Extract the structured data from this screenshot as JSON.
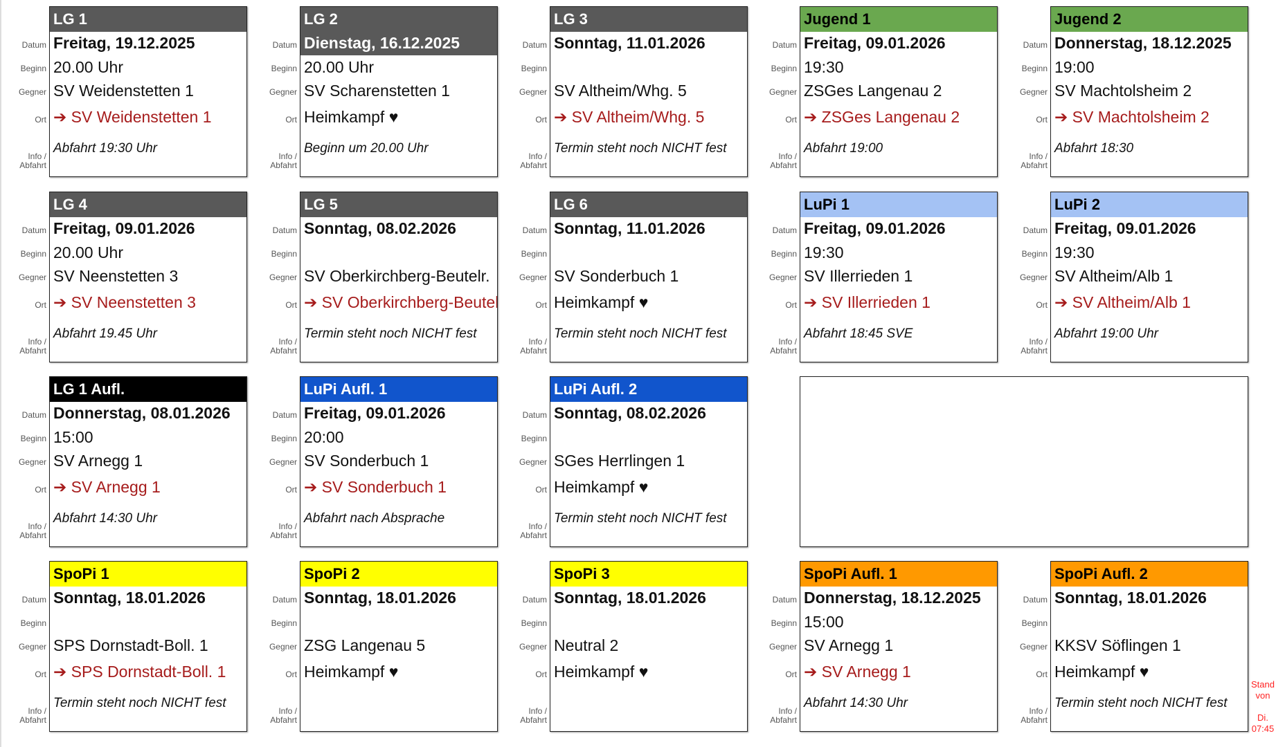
{
  "labels": {
    "datum": "Datum",
    "beginn": "Beginn",
    "gegner": "Gegner",
    "ort": "Ort",
    "info1": "Info /",
    "info2": "Abfahrt"
  },
  "cards": [
    {
      "team": "LG 1",
      "color": "#595959",
      "text": "#ffffff",
      "date": "Freitag, 19.12.2025",
      "time": "20.00 Uhr",
      "opponent": "SV Weidenstetten 1",
      "venue": "➔ SV Weidenstetten 1",
      "away": true,
      "info": "Abfahrt 19:30 Uhr"
    },
    {
      "team": "LG 2",
      "color": "#595959",
      "text": "#ffffff",
      "date": "Dienstag, 16.12.2025",
      "date_highlight": true,
      "time": "20.00 Uhr",
      "opponent": "SV Scharenstetten 1",
      "venue": "Heimkampf ♥",
      "away": false,
      "info": "Beginn um 20.00 Uhr"
    },
    {
      "team": "LG 3",
      "color": "#595959",
      "text": "#ffffff",
      "date": "Sonntag, 11.01.2026",
      "time": "",
      "opponent": "SV Altheim/Whg. 5",
      "venue": "➔ SV Altheim/Whg. 5",
      "away": true,
      "info": "Termin steht noch NICHT fest"
    },
    {
      "team": "Jugend 1",
      "color": "#6aa84f",
      "text": "#000000",
      "date": "Freitag, 09.01.2026",
      "time": "19:30",
      "opponent": "ZSGes Langenau 2",
      "venue": "➔ ZSGes Langenau 2",
      "away": true,
      "info": "Abfahrt 19:00"
    },
    {
      "team": "Jugend 2",
      "color": "#6aa84f",
      "text": "#000000",
      "date": "Donnerstag, 18.12.2025",
      "time": "19:00",
      "opponent": "SV Machtolsheim 2",
      "venue": "➔ SV Machtolsheim 2",
      "away": true,
      "info": "Abfahrt 18:30"
    },
    {
      "team": "LG 4",
      "color": "#595959",
      "text": "#ffffff",
      "date": "Freitag, 09.01.2026",
      "time": "20.00 Uhr",
      "opponent": "SV Neenstetten 3",
      "venue": "➔ SV Neenstetten 3",
      "away": true,
      "info": "Abfahrt 19.45 Uhr"
    },
    {
      "team": "LG 5",
      "color": "#595959",
      "text": "#ffffff",
      "date": "Sonntag, 08.02.2026",
      "time": "",
      "opponent": "SV Oberkirchberg-Beutelr.",
      "venue": "➔ SV Oberkirchberg-Beutelr.",
      "away": true,
      "info": "Termin steht noch NICHT fest"
    },
    {
      "team": "LG 6",
      "color": "#595959",
      "text": "#ffffff",
      "date": "Sonntag, 11.01.2026",
      "time": "",
      "opponent": "SV Sonderbuch 1",
      "venue": "Heimkampf ♥",
      "away": false,
      "info": "Termin steht noch NICHT fest"
    },
    {
      "team": "LuPi 1",
      "color": "#a4c2f4",
      "text": "#000000",
      "date": "Freitag, 09.01.2026",
      "time": "19:30",
      "opponent": "SV Illerrieden 1",
      "venue": "➔ SV Illerrieden 1",
      "away": true,
      "info": "Abfahrt 18:45 SVE"
    },
    {
      "team": "LuPi 2",
      "color": "#a4c2f4",
      "text": "#000000",
      "date": "Freitag, 09.01.2026",
      "time": "19:30",
      "opponent": "SV Altheim/Alb 1",
      "venue": "➔ SV Altheim/Alb 1",
      "away": true,
      "info": "Abfahrt 19:00 Uhr"
    },
    {
      "team": "LG 1 Aufl.",
      "color": "#000000",
      "text": "#ffffff",
      "date": "Donnerstag, 08.01.2026",
      "time": "15:00",
      "opponent": "SV Arnegg 1",
      "venue": "➔ SV Arnegg 1",
      "away": true,
      "info": "Abfahrt 14:30 Uhr"
    },
    {
      "team": "LuPi Aufl. 1",
      "color": "#1155cc",
      "text": "#ffffff",
      "date": "Freitag, 09.01.2026",
      "time": "20:00",
      "opponent": "SV Sonderbuch 1",
      "venue": "➔ SV Sonderbuch 1",
      "away": true,
      "info": "Abfahrt nach Absprache"
    },
    {
      "team": "LuPi Aufl. 2",
      "color": "#1155cc",
      "text": "#ffffff",
      "date": "Sonntag, 08.02.2026",
      "time": "",
      "opponent": "SGes Herrlingen 1",
      "venue": "Heimkampf ♥",
      "away": false,
      "info": "Termin steht noch NICHT fest"
    },
    {
      "team": "SpoPi 1",
      "color": "#ffff00",
      "text": "#000000",
      "date": "Sonntag, 18.01.2026",
      "time": "",
      "opponent": "SPS Dornstadt-Boll. 1",
      "venue": "➔ SPS Dornstadt-Boll. 1",
      "away": true,
      "info": "Termin steht noch NICHT fest"
    },
    {
      "team": "SpoPi 2",
      "color": "#ffff00",
      "text": "#000000",
      "date": "Sonntag, 18.01.2026",
      "time": "",
      "opponent": "ZSG Langenau 5",
      "venue": "Heimkampf ♥",
      "away": false,
      "info": ""
    },
    {
      "team": "SpoPi 3",
      "color": "#ffff00",
      "text": "#000000",
      "date": "Sonntag, 18.01.2026",
      "time": "",
      "opponent": "Neutral 2",
      "venue": "Heimkampf ♥",
      "away": false,
      "info": ""
    },
    {
      "team": "SpoPi Aufl. 1",
      "color": "#ff9900",
      "text": "#000000",
      "date": "Donnerstag, 18.12.2025",
      "time": "15:00",
      "opponent": "SV Arnegg 1",
      "venue": "➔ SV Arnegg 1",
      "away": true,
      "info": "Abfahrt 14:30 Uhr"
    },
    {
      "team": "SpoPi Aufl. 2",
      "color": "#ff9900",
      "text": "#000000",
      "date": "Sonntag, 18.01.2026",
      "time": "",
      "opponent": "KKSV Söflingen 1",
      "venue": "Heimkampf ♥",
      "away": false,
      "info": "Termin steht noch NICHT fest"
    }
  ],
  "stand": {
    "line1": "Stand",
    "line2": "von",
    "line3": "Di.",
    "line4": "07:45"
  }
}
